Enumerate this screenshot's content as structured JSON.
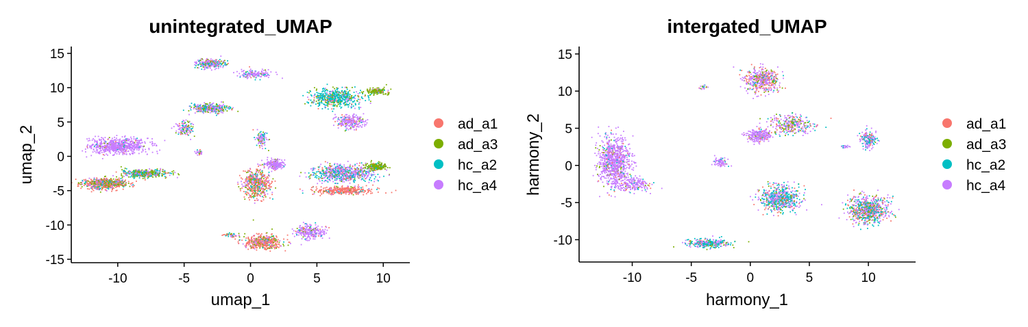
{
  "colors": {
    "ad_a1": "#F8766D",
    "ad_a3": "#7CAE00",
    "hc_a2": "#00BFC4",
    "hc_a4": "#C77CFF"
  },
  "chart_data": [
    {
      "type": "scatter",
      "title": "unintegrated_UMAP",
      "xlabel": "umap_1",
      "ylabel": "umap_2",
      "xlim": [
        -13.5,
        12
      ],
      "ylim": [
        -15.5,
        16
      ],
      "xticks": [
        -10,
        -5,
        0,
        5,
        10
      ],
      "xtick_labels": [
        "-10",
        "-5",
        "0",
        "5",
        "10"
      ],
      "yticks": [
        -15,
        -10,
        -5,
        0,
        5,
        10,
        15
      ],
      "ytick_labels": [
        "-15",
        "-10",
        "-5",
        "0",
        "5",
        "10",
        "15"
      ],
      "grid": false,
      "legend_position": "right",
      "legend": [
        "ad_a1",
        "ad_a3",
        "hc_a2",
        "hc_a4"
      ],
      "clusters": [
        {
          "cx": -10,
          "cy": 1.5,
          "sx": 2.0,
          "sy": 1.0,
          "n": 700,
          "mix": [
            0.02,
            0.02,
            0.03,
            0.93
          ]
        },
        {
          "cx": -11,
          "cy": -4.0,
          "sx": 1.5,
          "sy": 0.7,
          "n": 600,
          "mix": [
            0.45,
            0.25,
            0.15,
            0.15
          ]
        },
        {
          "cx": -8,
          "cy": -2.5,
          "sx": 1.6,
          "sy": 0.5,
          "n": 400,
          "mix": [
            0.1,
            0.35,
            0.35,
            0.2
          ]
        },
        {
          "cx": -3,
          "cy": 13.5,
          "sx": 1.0,
          "sy": 0.6,
          "n": 250,
          "mix": [
            0.05,
            0.15,
            0.3,
            0.5
          ]
        },
        {
          "cx": 0.3,
          "cy": 12.0,
          "sx": 1.2,
          "sy": 0.5,
          "n": 150,
          "mix": [
            0.03,
            0.05,
            0.2,
            0.72
          ]
        },
        {
          "cx": -3.0,
          "cy": 7.0,
          "sx": 1.3,
          "sy": 0.6,
          "n": 350,
          "mix": [
            0.05,
            0.2,
            0.25,
            0.5
          ]
        },
        {
          "cx": -5.0,
          "cy": 4.0,
          "sx": 0.6,
          "sy": 1.0,
          "n": 120,
          "mix": [
            0.1,
            0.2,
            0.2,
            0.5
          ]
        },
        {
          "cx": 0.8,
          "cy": 2.5,
          "sx": 0.4,
          "sy": 1.0,
          "n": 100,
          "mix": [
            0.05,
            0.1,
            0.25,
            0.6
          ]
        },
        {
          "cx": -3.9,
          "cy": 0.5,
          "sx": 0.3,
          "sy": 0.3,
          "n": 30,
          "mix": [
            0.1,
            0.1,
            0.1,
            0.7
          ]
        },
        {
          "cx": 0.5,
          "cy": -4.0,
          "sx": 0.9,
          "sy": 2.0,
          "n": 500,
          "mix": [
            0.5,
            0.2,
            0.1,
            0.2
          ]
        },
        {
          "cx": 1.8,
          "cy": -1.2,
          "sx": 0.7,
          "sy": 0.6,
          "n": 200,
          "mix": [
            0.02,
            0.03,
            0.05,
            0.9
          ]
        },
        {
          "cx": 1.0,
          "cy": -12.5,
          "sx": 1.3,
          "sy": 0.9,
          "n": 450,
          "mix": [
            0.65,
            0.15,
            0.05,
            0.15
          ]
        },
        {
          "cx": 4.5,
          "cy": -11.0,
          "sx": 1.1,
          "sy": 1.0,
          "n": 250,
          "mix": [
            0.05,
            0.05,
            0.05,
            0.85
          ]
        },
        {
          "cx": 6.5,
          "cy": 8.5,
          "sx": 1.7,
          "sy": 1.2,
          "n": 550,
          "mix": [
            0.05,
            0.2,
            0.65,
            0.1
          ]
        },
        {
          "cx": 9.5,
          "cy": 9.5,
          "sx": 0.7,
          "sy": 0.4,
          "n": 150,
          "mix": [
            0.05,
            0.85,
            0.05,
            0.05
          ]
        },
        {
          "cx": 7.5,
          "cy": 5.0,
          "sx": 0.9,
          "sy": 1.0,
          "n": 250,
          "mix": [
            0.1,
            0.05,
            0.05,
            0.8
          ]
        },
        {
          "cx": 7.0,
          "cy": -2.5,
          "sx": 2.2,
          "sy": 1.1,
          "n": 700,
          "mix": [
            0.1,
            0.1,
            0.3,
            0.5
          ]
        },
        {
          "cx": 7.0,
          "cy": -5.0,
          "sx": 2.0,
          "sy": 0.5,
          "n": 350,
          "mix": [
            0.85,
            0.05,
            0.05,
            0.05
          ]
        },
        {
          "cx": 9.5,
          "cy": -1.5,
          "sx": 0.7,
          "sy": 0.5,
          "n": 200,
          "mix": [
            0.05,
            0.85,
            0.05,
            0.05
          ]
        },
        {
          "cx": -1.5,
          "cy": -11.5,
          "sx": 0.7,
          "sy": 0.3,
          "n": 40,
          "mix": [
            0.3,
            0.2,
            0.2,
            0.3
          ]
        }
      ]
    },
    {
      "type": "scatter",
      "title": "intergated_UMAP",
      "xlabel": "harmony_1",
      "ylabel": "harmony_2",
      "xlim": [
        -14.5,
        14
      ],
      "ylim": [
        -13,
        16
      ],
      "xticks": [
        -10,
        -5,
        0,
        5,
        10
      ],
      "xtick_labels": [
        "-10",
        "-5",
        "0",
        "5",
        "10"
      ],
      "yticks": [
        -10,
        -5,
        0,
        5,
        10,
        15
      ],
      "ytick_labels": [
        "-10",
        "-5",
        "0",
        "5",
        "10",
        "15"
      ],
      "grid": false,
      "legend_position": "right",
      "legend": [
        "ad_a1",
        "ad_a3",
        "hc_a2",
        "hc_a4"
      ],
      "clusters": [
        {
          "cx": -11.5,
          "cy": 0.5,
          "sx": 1.2,
          "sy": 3.0,
          "n": 900,
          "mix": [
            0.05,
            0.05,
            0.05,
            0.85
          ]
        },
        {
          "cx": -10.0,
          "cy": -2.5,
          "sx": 1.5,
          "sy": 0.8,
          "n": 200,
          "mix": [
            0.05,
            0.05,
            0.05,
            0.85
          ]
        },
        {
          "cx": 1.0,
          "cy": 11.5,
          "sx": 1.3,
          "sy": 1.5,
          "n": 450,
          "mix": [
            0.25,
            0.1,
            0.1,
            0.55
          ]
        },
        {
          "cx": 0.7,
          "cy": 4.0,
          "sx": 0.9,
          "sy": 0.8,
          "n": 250,
          "mix": [
            0.05,
            0.05,
            0.05,
            0.85
          ]
        },
        {
          "cx": 3.5,
          "cy": 5.5,
          "sx": 1.6,
          "sy": 1.2,
          "n": 300,
          "mix": [
            0.15,
            0.2,
            0.15,
            0.5
          ]
        },
        {
          "cx": 10.0,
          "cy": 3.5,
          "sx": 0.6,
          "sy": 1.0,
          "n": 180,
          "mix": [
            0.1,
            0.05,
            0.3,
            0.55
          ]
        },
        {
          "cx": -2.5,
          "cy": 0.5,
          "sx": 0.6,
          "sy": 0.5,
          "n": 80,
          "mix": [
            0.05,
            0.05,
            0.05,
            0.85
          ]
        },
        {
          "cx": 2.5,
          "cy": -4.5,
          "sx": 1.5,
          "sy": 1.5,
          "n": 600,
          "mix": [
            0.1,
            0.1,
            0.4,
            0.4
          ]
        },
        {
          "cx": 10.0,
          "cy": -6.0,
          "sx": 1.5,
          "sy": 1.7,
          "n": 700,
          "mix": [
            0.2,
            0.15,
            0.25,
            0.4
          ]
        },
        {
          "cx": -3.5,
          "cy": -10.5,
          "sx": 1.6,
          "sy": 0.5,
          "n": 300,
          "mix": [
            0.05,
            0.1,
            0.45,
            0.4
          ]
        },
        {
          "cx": -4.0,
          "cy": 10.5,
          "sx": 0.5,
          "sy": 0.3,
          "n": 20,
          "mix": [
            0.2,
            0.1,
            0.2,
            0.5
          ]
        },
        {
          "cx": 8.0,
          "cy": 2.5,
          "sx": 0.4,
          "sy": 0.2,
          "n": 20,
          "mix": [
            0.1,
            0.1,
            0.2,
            0.6
          ]
        }
      ]
    }
  ]
}
